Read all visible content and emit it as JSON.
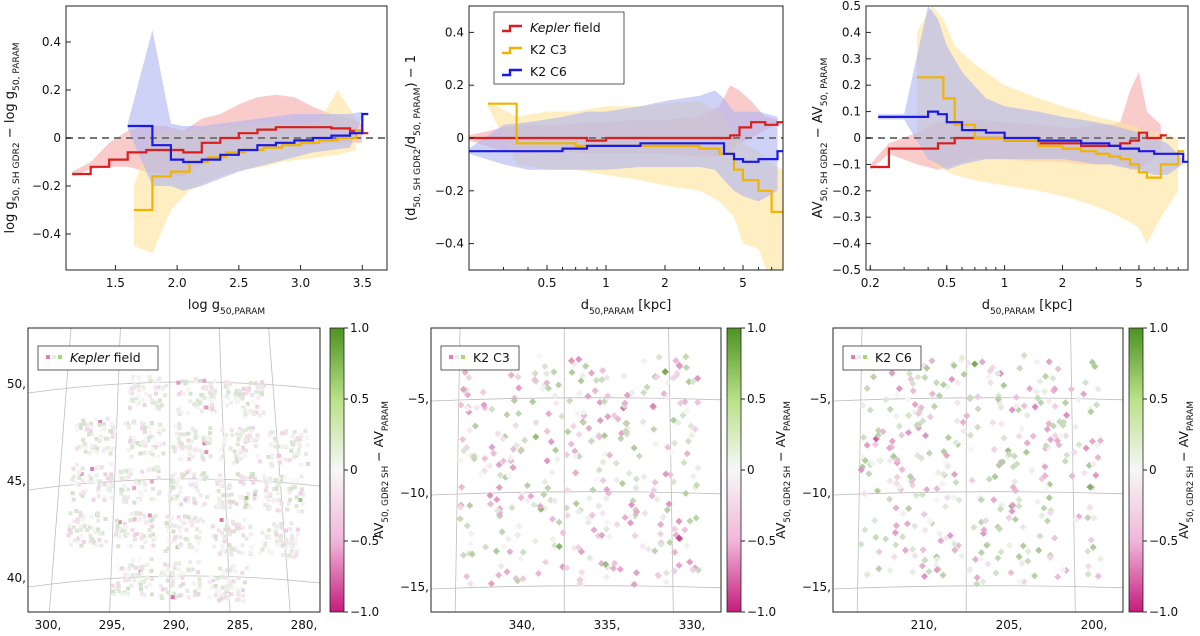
{
  "colors": {
    "kepler": "#d81e1e",
    "k2c3": "#f0b400",
    "k2c6": "#1a1ae0",
    "kepler_band": "#f7a8a8",
    "k2c3_band": "#ffe39a",
    "k2c6_band": "#aeb4f2",
    "zero_line": "#777777",
    "cmap_low": "#c51b7d",
    "cmap_mid": "#f7f7f7",
    "cmap_high": "#4d9221"
  },
  "chart_data": [
    {
      "id": "logg",
      "type": "line",
      "xlabel": "log g",
      "xlabel_sub": "50,PARAM",
      "ylabel": "log g",
      "ylabel_parts": [
        "log g",
        "50, SH GDR2",
        " − log g",
        "50, PARAM"
      ],
      "xlim": [
        1.1,
        3.7
      ],
      "ylim": [
        -0.55,
        0.55
      ],
      "xticks": [
        1.5,
        2.0,
        2.5,
        3.0,
        3.5
      ],
      "xtick_labels": [
        "1.5",
        "2.0",
        "2.5",
        "3.0",
        "3.5"
      ],
      "yticks": [
        0.4,
        0.2,
        0,
        -0.2,
        -0.4
      ],
      "ytick_labels": [
        "0.4",
        "0.2",
        "0",
        "−0.2",
        "−0.4"
      ],
      "series": [
        {
          "name": "Kepler field",
          "key": "kepler",
          "x": [
            1.15,
            1.3,
            1.45,
            1.6,
            1.75,
            1.9,
            2.05,
            2.2,
            2.35,
            2.5,
            2.65,
            2.8,
            2.95,
            3.1,
            3.25,
            3.4,
            3.5
          ],
          "y": [
            -0.15,
            -0.12,
            -0.09,
            -0.06,
            -0.05,
            -0.05,
            -0.06,
            -0.02,
            0.0,
            0.02,
            0.035,
            0.045,
            0.045,
            0.045,
            0.04,
            0.03,
            0.02
          ],
          "lo": [
            -0.16,
            -0.13,
            -0.12,
            -0.12,
            -0.14,
            -0.15,
            -0.16,
            -0.11,
            -0.08,
            -0.05,
            -0.04,
            -0.03,
            -0.03,
            -0.03,
            -0.02,
            -0.02,
            -0.02
          ],
          "hi": [
            -0.14,
            -0.1,
            -0.02,
            0.03,
            0.05,
            0.05,
            0.03,
            0.08,
            0.1,
            0.14,
            0.17,
            0.18,
            0.17,
            0.13,
            0.1,
            0.08,
            0.06
          ]
        },
        {
          "name": "K2 C3",
          "key": "k2c3",
          "x": [
            1.65,
            1.8,
            1.95,
            2.1,
            2.25,
            2.4,
            2.55,
            2.7,
            2.85,
            3.0,
            3.15,
            3.3,
            3.45
          ],
          "y": [
            -0.3,
            -0.16,
            -0.14,
            -0.1,
            -0.08,
            -0.06,
            -0.05,
            -0.04,
            -0.03,
            -0.02,
            -0.01,
            0.0,
            0.03
          ],
          "lo": [
            -0.45,
            -0.48,
            -0.3,
            -0.22,
            -0.18,
            -0.15,
            -0.13,
            -0.12,
            -0.1,
            -0.09,
            -0.08,
            -0.07,
            -0.05
          ],
          "hi": [
            -0.2,
            0.02,
            0.03,
            0.03,
            0.04,
            0.05,
            0.05,
            0.06,
            0.06,
            0.06,
            0.07,
            0.2,
            0.08
          ]
        },
        {
          "name": "K2 C6",
          "key": "k2c6",
          "x": [
            1.6,
            1.8,
            1.95,
            2.05,
            2.2,
            2.35,
            2.5,
            2.65,
            2.8,
            2.95,
            3.1,
            3.25,
            3.4,
            3.5
          ],
          "y": [
            0.05,
            -0.03,
            -0.09,
            -0.1,
            -0.09,
            -0.07,
            -0.05,
            -0.03,
            -0.02,
            -0.01,
            0.0,
            0.01,
            0.02,
            0.1
          ],
          "lo": [
            0.04,
            -0.2,
            -0.2,
            -0.22,
            -0.2,
            -0.17,
            -0.14,
            -0.12,
            -0.1,
            -0.08,
            -0.06,
            -0.05,
            -0.04,
            0.09
          ],
          "hi": [
            0.06,
            0.45,
            0.06,
            0.05,
            0.05,
            0.06,
            0.07,
            0.08,
            0.09,
            0.1,
            0.1,
            0.1,
            0.1,
            0.11
          ]
        }
      ]
    },
    {
      "id": "distance",
      "type": "line",
      "xscale": "log",
      "xlabel": "d",
      "xlabel_sub": "50,PARAM",
      "xlabel_unit": "[kpc]",
      "ylabel_parts": [
        "(d",
        "50, SH GDR2",
        "/d",
        "50, PARAM",
        ") − 1"
      ],
      "xlim": [
        0.2,
        8.0
      ],
      "ylim": [
        -0.5,
        0.5
      ],
      "xticks": [
        0.5,
        1,
        2,
        5
      ],
      "xtick_labels": [
        "0.5",
        "1",
        "2",
        "5"
      ],
      "yticks": [
        0.4,
        0.2,
        0,
        -0.2,
        -0.4
      ],
      "ytick_labels": [
        "0.4",
        "0.2",
        "0",
        "−0.2",
        "−0.4"
      ],
      "legend": [
        "Kepler field",
        "K2 C3",
        "K2 C6"
      ],
      "legend_loc": "top-left",
      "series": [
        {
          "name": "Kepler field",
          "key": "kepler",
          "x": [
            0.2,
            0.3,
            0.4,
            0.6,
            0.8,
            1.0,
            1.5,
            2.0,
            3.0,
            3.8,
            4.3,
            4.8,
            5.5,
            6.5,
            7.5
          ],
          "y": [
            0.0,
            0.0,
            0.0,
            0.0,
            -0.01,
            0.0,
            0.0,
            0.0,
            0.0,
            0.0,
            0.01,
            0.04,
            0.06,
            0.05,
            0.06
          ],
          "lo": [
            -0.01,
            -0.05,
            -0.06,
            -0.05,
            -0.06,
            -0.06,
            -0.06,
            -0.06,
            -0.07,
            -0.07,
            -0.05,
            -0.02,
            0.0,
            0.03,
            0.05
          ],
          "hi": [
            0.01,
            0.04,
            0.05,
            0.05,
            0.06,
            0.06,
            0.07,
            0.07,
            0.08,
            0.12,
            0.2,
            0.18,
            0.14,
            0.08,
            0.07
          ]
        },
        {
          "name": "K2 C3",
          "key": "k2c3",
          "x": [
            0.25,
            0.35,
            0.5,
            0.7,
            1.0,
            1.5,
            2.0,
            3.0,
            3.8,
            4.5,
            5.0,
            6.0,
            7.0,
            8.0
          ],
          "y": [
            0.13,
            -0.02,
            -0.02,
            -0.03,
            -0.03,
            -0.03,
            -0.03,
            -0.04,
            -0.06,
            -0.12,
            -0.16,
            -0.2,
            -0.28,
            -0.28
          ],
          "lo": [
            0.12,
            -0.1,
            -0.12,
            -0.12,
            -0.14,
            -0.16,
            -0.18,
            -0.2,
            -0.24,
            -0.3,
            -0.4,
            -0.42,
            -0.55,
            -0.55
          ],
          "hi": [
            0.14,
            0.08,
            0.1,
            0.1,
            0.12,
            0.12,
            0.13,
            0.14,
            0.1,
            0.02,
            -0.02,
            -0.05,
            -0.1,
            -0.12
          ]
        },
        {
          "name": "K2 C6",
          "key": "k2c6",
          "x": [
            0.2,
            0.3,
            0.4,
            0.6,
            0.8,
            1.0,
            1.5,
            2.0,
            3.0,
            3.6,
            4.0,
            4.5,
            5.0,
            6.0,
            7.5
          ],
          "y": [
            -0.05,
            -0.05,
            -0.05,
            -0.04,
            -0.03,
            -0.03,
            -0.02,
            -0.02,
            -0.02,
            -0.02,
            -0.06,
            -0.08,
            -0.09,
            -0.08,
            -0.05
          ],
          "lo": [
            -0.06,
            -0.1,
            -0.12,
            -0.12,
            -0.12,
            -0.12,
            -0.11,
            -0.11,
            -0.11,
            -0.12,
            -0.16,
            -0.2,
            -0.22,
            -0.24,
            -0.2
          ],
          "hi": [
            -0.04,
            0.05,
            0.06,
            0.08,
            0.1,
            0.1,
            0.12,
            0.14,
            0.16,
            0.18,
            0.15,
            0.1,
            0.1,
            0.1,
            0.08
          ]
        }
      ]
    },
    {
      "id": "extinction",
      "type": "line",
      "xscale": "log",
      "xlabel": "d",
      "xlabel_sub": "50,PARAM",
      "xlabel_unit": "[kpc]",
      "ylabel_parts": [
        "AV",
        "50, SH GDR2",
        " − AV",
        "50, PARAM"
      ],
      "xlim": [
        0.19,
        9.0
      ],
      "ylim": [
        -0.5,
        0.5
      ],
      "xticks": [
        0.2,
        0.5,
        1,
        2,
        5
      ],
      "xtick_labels": [
        "0.2",
        "0.5",
        "1",
        "2",
        "5"
      ],
      "yticks": [
        0.5,
        0.4,
        0.3,
        0.2,
        0.1,
        0,
        -0.1,
        -0.2,
        -0.3,
        -0.4,
        -0.5
      ],
      "ytick_labels": [
        "0.5",
        "0.4",
        "0.3",
        "0.2",
        "0.1",
        "0",
        "−0.1",
        "−0.2",
        "−0.3",
        "−0.4",
        "−0.5"
      ],
      "series": [
        {
          "name": "Kepler field",
          "key": "kepler",
          "x": [
            0.2,
            0.25,
            0.35,
            0.45,
            0.55,
            0.7,
            1.0,
            1.5,
            2.0,
            2.5,
            3.0,
            3.5,
            4.0,
            4.5,
            5.0,
            5.5,
            6.5
          ],
          "y": [
            -0.11,
            -0.04,
            -0.04,
            -0.02,
            0.0,
            0.0,
            -0.01,
            -0.02,
            -0.02,
            -0.03,
            -0.03,
            -0.03,
            -0.02,
            -0.01,
            0.02,
            0.0,
            0.01
          ],
          "lo": [
            -0.12,
            -0.06,
            -0.1,
            -0.12,
            -0.1,
            -0.08,
            -0.08,
            -0.09,
            -0.09,
            -0.1,
            -0.1,
            -0.1,
            -0.1,
            -0.12,
            -0.12,
            -0.1,
            -0.05
          ],
          "hi": [
            -0.1,
            -0.02,
            0.02,
            0.06,
            0.07,
            0.07,
            0.06,
            0.05,
            0.04,
            0.04,
            0.05,
            0.05,
            0.06,
            0.18,
            0.25,
            0.1,
            0.05
          ]
        },
        {
          "name": "K2 C3",
          "key": "k2c3",
          "x": [
            0.35,
            0.42,
            0.48,
            0.55,
            0.7,
            1.0,
            1.5,
            2.0,
            2.5,
            3.0,
            3.5,
            4.0,
            4.5,
            5.0,
            5.5,
            6.5,
            8.0
          ],
          "y": [
            0.23,
            0.23,
            0.15,
            0.05,
            0.0,
            -0.01,
            -0.03,
            -0.04,
            -0.05,
            -0.06,
            -0.07,
            -0.08,
            -0.1,
            -0.13,
            -0.15,
            -0.1,
            -0.05
          ],
          "lo": [
            0.0,
            -0.1,
            -0.12,
            -0.14,
            -0.16,
            -0.18,
            -0.2,
            -0.22,
            -0.24,
            -0.26,
            -0.28,
            -0.3,
            -0.32,
            -0.34,
            -0.4,
            -0.3,
            -0.2
          ],
          "hi": [
            0.4,
            0.5,
            0.45,
            0.35,
            0.28,
            0.2,
            0.15,
            0.12,
            0.1,
            0.08,
            0.07,
            0.06,
            0.05,
            0.04,
            0.02,
            0.02,
            0.0
          ]
        },
        {
          "name": "K2 C6",
          "key": "k2c6",
          "x": [
            0.22,
            0.3,
            0.4,
            0.45,
            0.5,
            0.6,
            0.8,
            1.0,
            1.5,
            2.0,
            2.5,
            3.0,
            3.5,
            4.0,
            5.0,
            6.0,
            7.0,
            8.5
          ],
          "y": [
            0.08,
            0.08,
            0.1,
            0.09,
            0.06,
            0.03,
            0.02,
            0.0,
            -0.01,
            -0.01,
            -0.02,
            -0.02,
            -0.03,
            -0.04,
            -0.05,
            -0.06,
            -0.06,
            -0.09
          ],
          "lo": [
            0.07,
            0.07,
            -0.08,
            -0.1,
            -0.12,
            -0.1,
            -0.08,
            -0.08,
            -0.08,
            -0.08,
            -0.09,
            -0.1,
            -0.1,
            -0.11,
            -0.12,
            -0.14,
            -0.14,
            -0.1
          ],
          "hi": [
            0.09,
            0.09,
            0.5,
            0.45,
            0.35,
            0.25,
            0.15,
            0.12,
            0.1,
            0.08,
            0.07,
            0.06,
            0.05,
            0.04,
            0.02,
            0.0,
            -0.02,
            -0.08
          ]
        }
      ]
    },
    {
      "id": "map-kepler",
      "type": "heatmap",
      "legend": "Kepler field",
      "legend_style": "italic",
      "x_labels": [
        "300,",
        "295,",
        "290,",
        "285,",
        "280,"
      ],
      "y_labels": [
        "50,",
        "45,",
        "40,"
      ],
      "cbar_ticks": [
        "1.0",
        "0.5",
        "0",
        "−0.5",
        "−1.0"
      ],
      "cbar_label": "AV",
      "cbar_label_parts": [
        "AV",
        "50, GDR2 SH",
        " − AV",
        "PARAM"
      ],
      "clim": [
        -1.0,
        1.0
      ],
      "value_range": [
        -0.6,
        0.4
      ]
    },
    {
      "id": "map-k2c3",
      "type": "heatmap",
      "legend": "K2 C3",
      "legend_style": "normal",
      "x_labels": [
        "340,",
        "335,",
        "330,"
      ],
      "y_labels": [
        "−5,",
        "−10,",
        "−15,"
      ],
      "cbar_ticks": [
        "1.0",
        "0.5",
        "0",
        "−0.5",
        "−1.0"
      ],
      "cbar_label_parts": [
        "AV",
        "50, GDR2 SH",
        " − AV",
        "PARAM"
      ],
      "clim": [
        -1.0,
        1.0
      ],
      "value_range": [
        -0.7,
        0.5
      ]
    },
    {
      "id": "map-k2c6",
      "type": "heatmap",
      "legend": "K2 C6",
      "legend_style": "normal",
      "x_labels": [
        "210,",
        "205,",
        "200,"
      ],
      "y_labels": [
        "−5,",
        "−10,",
        "−15,"
      ],
      "cbar_ticks": [
        "1.0",
        "0.5",
        "0",
        "−0.5",
        "−1.0"
      ],
      "cbar_label_parts": [
        "AV",
        "50, GDR2 SH",
        " − AV",
        "PARAM"
      ],
      "clim": [
        -1.0,
        1.0
      ],
      "value_range": [
        -0.7,
        0.6
      ]
    }
  ]
}
